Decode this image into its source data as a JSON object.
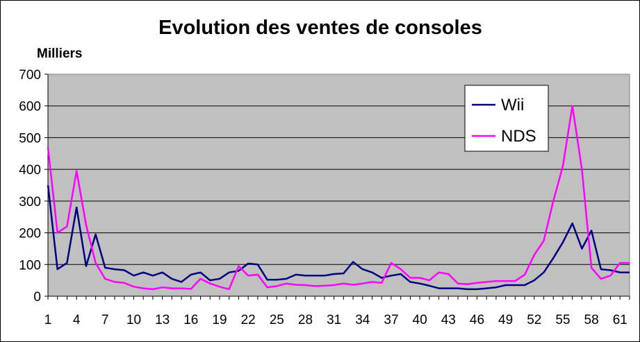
{
  "chart_data": {
    "type": "line",
    "title": "Evolution des ventes de consoles",
    "ylabel": "Milliers",
    "xlabel": "",
    "ylim": [
      0,
      700
    ],
    "y_ticks": [
      0,
      100,
      200,
      300,
      400,
      500,
      600,
      700
    ],
    "x_range": [
      1,
      62
    ],
    "x_ticks": [
      1,
      4,
      7,
      10,
      13,
      16,
      19,
      22,
      25,
      28,
      31,
      34,
      37,
      40,
      43,
      46,
      49,
      52,
      55,
      58,
      61
    ],
    "grid": "horizontal",
    "plot_background": "#C0C0C0",
    "legend_position": "top-right",
    "series": [
      {
        "name": "Wii",
        "color": "#000080",
        "values": [
          350,
          85,
          105,
          280,
          95,
          195,
          90,
          85,
          82,
          65,
          75,
          65,
          75,
          55,
          45,
          68,
          75,
          50,
          55,
          75,
          80,
          103,
          100,
          52,
          52,
          55,
          68,
          65,
          65,
          65,
          70,
          72,
          108,
          85,
          75,
          58,
          65,
          70,
          45,
          40,
          33,
          25,
          25,
          25,
          22,
          22,
          25,
          28,
          35,
          35,
          35,
          50,
          75,
          120,
          170,
          230,
          150,
          207,
          85,
          82,
          75,
          75
        ]
      },
      {
        "name": "NDS",
        "color": "#FF00FF",
        "values": [
          470,
          200,
          220,
          395,
          225,
          105,
          55,
          45,
          42,
          30,
          25,
          22,
          28,
          25,
          25,
          23,
          55,
          40,
          30,
          22,
          95,
          65,
          68,
          28,
          32,
          40,
          36,
          35,
          32,
          33,
          35,
          40,
          36,
          40,
          45,
          42,
          105,
          85,
          58,
          58,
          50,
          75,
          70,
          40,
          38,
          42,
          45,
          48,
          48,
          48,
          68,
          130,
          175,
          300,
          410,
          600,
          400,
          90,
          55,
          65,
          105,
          105
        ]
      }
    ]
  }
}
